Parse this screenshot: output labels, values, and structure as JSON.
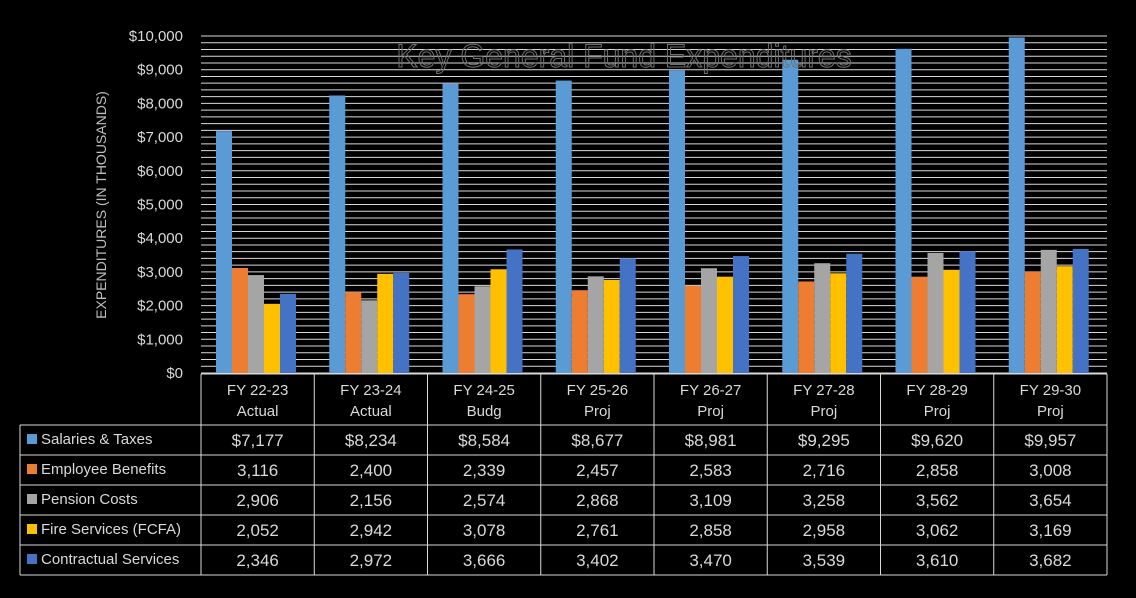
{
  "chart_data": {
    "type": "bar",
    "title": "Key General Fund Expenditures",
    "ylabel": "EXPENDITURES (IN THOUSANDS)",
    "ylim": [
      0,
      10000
    ],
    "yticks": [
      "$0",
      "$1,000",
      "$2,000",
      "$3,000",
      "$4,000",
      "$5,000",
      "$6,000",
      "$7,000",
      "$8,000",
      "$9,000",
      "$10,000"
    ],
    "grid": true,
    "legend": "data-table",
    "categories": [
      [
        "FY 22-23",
        "Actual"
      ],
      [
        "FY 23-24",
        "Actual"
      ],
      [
        "FY 24-25",
        "Budg"
      ],
      [
        "FY 25-26",
        "Proj"
      ],
      [
        "FY 26-27",
        "Proj"
      ],
      [
        "FY 27-28",
        "Proj"
      ],
      [
        "FY 28-29",
        "Proj"
      ],
      [
        "FY 29-30",
        "Proj"
      ]
    ],
    "series": [
      {
        "name": "Salaries & Taxes",
        "color": "#5b9bd5",
        "values": [
          7177,
          8234,
          8584,
          8677,
          8981,
          9295,
          9620,
          9957
        ],
        "labels": [
          "$7,177",
          "$8,234",
          "$8,584",
          "$8,677",
          "$8,981",
          "$9,295",
          "$9,620",
          "$9,957"
        ]
      },
      {
        "name": "Employee Benefits",
        "color": "#ed7d31",
        "values": [
          3116,
          2400,
          2339,
          2457,
          2583,
          2716,
          2858,
          3008
        ],
        "labels": [
          "3,116",
          "2,400",
          "2,339",
          "2,457",
          "2,583",
          "2,716",
          "2,858",
          "3,008"
        ]
      },
      {
        "name": "Pension Costs",
        "color": "#a5a5a5",
        "values": [
          2906,
          2156,
          2574,
          2868,
          3109,
          3258,
          3562,
          3654
        ],
        "labels": [
          "2,906",
          "2,156",
          "2,574",
          "2,868",
          "3,109",
          "3,258",
          "3,562",
          "3,654"
        ]
      },
      {
        "name": "Fire Services (FCFA)",
        "color": "#ffc000",
        "values": [
          2052,
          2942,
          3078,
          2761,
          2858,
          2958,
          3062,
          3169
        ],
        "labels": [
          "2,052",
          "2,942",
          "3,078",
          "2,761",
          "2,858",
          "2,958",
          "3,062",
          "3,169"
        ]
      },
      {
        "name": "Contractual Services",
        "color": "#4472c4",
        "values": [
          2346,
          2972,
          3666,
          3402,
          3470,
          3539,
          3610,
          3682
        ],
        "labels": [
          "2,346",
          "2,972",
          "3,666",
          "3,402",
          "3,470",
          "3,539",
          "3,610",
          "3,682"
        ]
      }
    ]
  }
}
